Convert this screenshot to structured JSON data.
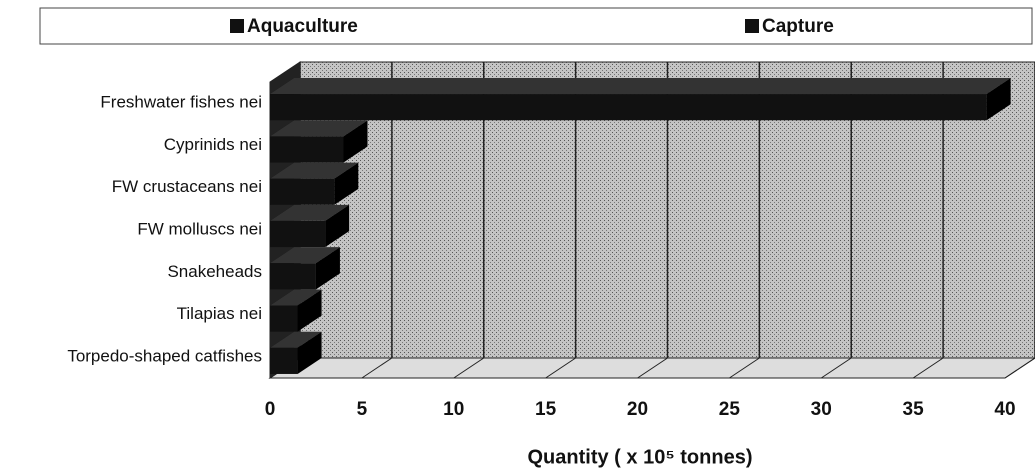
{
  "chart_data": {
    "type": "bar3d_horizontal_stacked",
    "categories": [
      "Freshwater fishes nei",
      "Cyprinids nei",
      "FW crustaceans nei",
      "FW molluscs nei",
      "Snakeheads",
      "Tilapias nei",
      "Torpedo-shaped catfishes"
    ],
    "series": [
      {
        "name": "Aquaculture",
        "color": "#111111",
        "values": [
          0,
          0,
          0,
          0,
          0,
          0,
          0
        ]
      },
      {
        "name": "Capture",
        "color": "#111111",
        "values": [
          39,
          4,
          3.5,
          3,
          2.5,
          1.5,
          1.5
        ]
      }
    ],
    "xlabel": "Quantity ( x 10⁵ tonnes)",
    "xlim": [
      0,
      40
    ],
    "xticks": [
      0,
      5,
      10,
      15,
      20,
      25,
      30,
      35,
      40
    ],
    "grid": true
  }
}
